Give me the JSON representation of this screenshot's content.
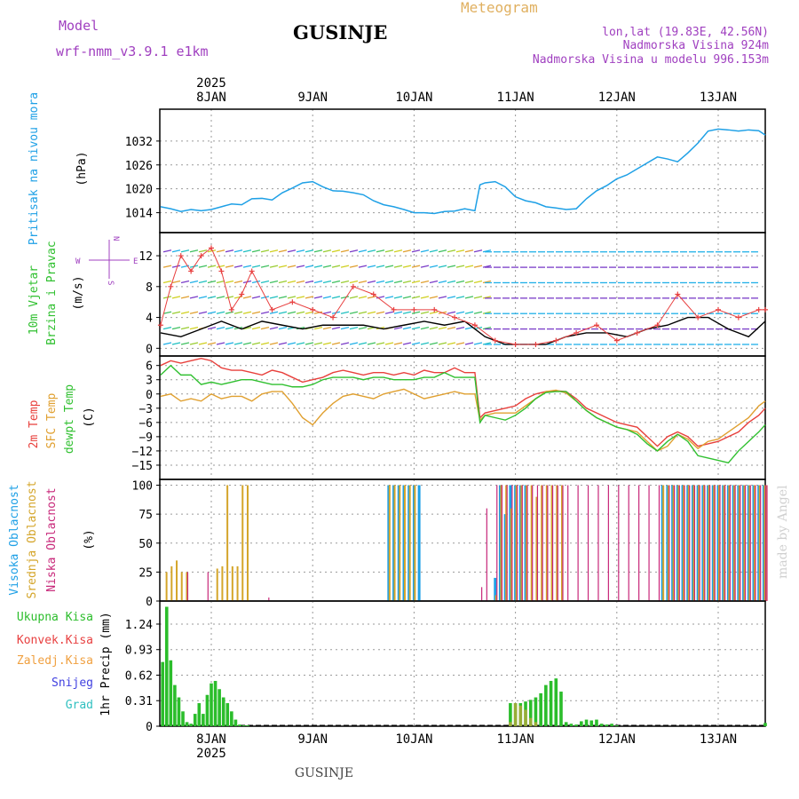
{
  "header": {
    "model_label": "Model",
    "model_name": "wrf-nmm_v3.9.1 e1km",
    "title": "GUSINJE",
    "subtitle": "Meteogram",
    "coords": "lon,lat (19.83E, 42.56N)",
    "elevation": "Nadmorska Visina 924m",
    "model_elevation": "Nadmorska Visina u modelu 996.153m",
    "watermark": "made by Angel",
    "footer_title": "GUSINJE"
  },
  "colors": {
    "pressure": "#1ea0e6",
    "temp2m": "#e8403c",
    "sfc": "#e0a030",
    "dew": "#30c030",
    "high_cloud": "#1ea0e6",
    "mid_cloud": "#d4a52a",
    "low_cloud": "#c8287a",
    "total_precip": "#2bbd2b",
    "conv": "#e84040",
    "frozen": "#f0a040",
    "snow": "#4040e0",
    "graup": "#30c0c0",
    "wind_speed": "#000000",
    "gust": "#e84040",
    "wind_ylabel": "#30c030",
    "compass": "#a040c0",
    "model": "#a040c0"
  },
  "time_axis": {
    "year": "2025",
    "days": [
      "8JAN",
      "9JAN",
      "10JAN",
      "11JAN",
      "12JAN",
      "13JAN"
    ]
  },
  "chart_data": [
    {
      "id": "pressure",
      "type": "line",
      "ylabels": [
        "Pritisak na nivou mora",
        "(hPa)"
      ],
      "yticks": [
        1014,
        1020,
        1026,
        1032
      ],
      "ylim": [
        1009,
        1040
      ],
      "x_unit": "days since 8JAN 00Z",
      "series": [
        {
          "name": "MSLP",
          "x": [
            -0.5,
            -0.4,
            -0.3,
            -0.2,
            -0.1,
            0,
            0.1,
            0.2,
            0.3,
            0.4,
            0.5,
            0.6,
            0.7,
            0.8,
            0.9,
            1.0,
            1.1,
            1.2,
            1.3,
            1.4,
            1.5,
            1.6,
            1.7,
            1.8,
            1.9,
            2.0,
            2.1,
            2.2,
            2.3,
            2.4,
            2.5,
            2.6,
            2.65,
            2.7,
            2.8,
            2.9,
            3.0,
            3.1,
            3.2,
            3.3,
            3.4,
            3.5,
            3.6,
            3.7,
            3.8,
            3.9,
            4.0,
            4.1,
            4.2,
            4.3,
            4.4,
            4.5,
            4.6,
            4.7,
            4.8,
            4.9,
            5.0,
            5.1,
            5.2,
            5.3,
            5.4,
            5.5
          ],
          "values": [
            1015.5,
            1015,
            1014.3,
            1014.8,
            1014.5,
            1014.8,
            1015.5,
            1016.2,
            1016,
            1017.5,
            1017.6,
            1017.2,
            1019,
            1020.2,
            1021.5,
            1021.8,
            1020.5,
            1019.5,
            1019.4,
            1019,
            1018.5,
            1017,
            1016,
            1015.5,
            1014.8,
            1014,
            1014,
            1013.8,
            1014.3,
            1014.4,
            1015,
            1014.5,
            1021,
            1021.5,
            1021.8,
            1020.5,
            1018,
            1017,
            1016.5,
            1015.5,
            1015.2,
            1014.8,
            1015,
            1017.5,
            1019.5,
            1020.8,
            1022.5,
            1023.5,
            1025,
            1026.5,
            1028,
            1027.5,
            1026.8,
            1029,
            1031.5,
            1034.5,
            1035,
            1034.8,
            1034.5,
            1034.8,
            1034.6,
            1033.5
          ]
        }
      ]
    },
    {
      "id": "wind",
      "type": "line",
      "ylabels": [
        "10m Vjetar",
        "Brzina i Pravac",
        "(m/s)"
      ],
      "compass": [
        "N",
        "W",
        "E",
        "S"
      ],
      "yticks": [
        0,
        4,
        8,
        12
      ],
      "ylim": [
        -1,
        15
      ],
      "series": [
        {
          "name": "speed",
          "x": [
            -0.5,
            -0.3,
            -0.1,
            0.1,
            0.3,
            0.5,
            0.7,
            0.9,
            1.1,
            1.3,
            1.5,
            1.7,
            1.9,
            2.1,
            2.3,
            2.5,
            2.7,
            2.9,
            3.1,
            3.3,
            3.5,
            3.7,
            3.9,
            4.1,
            4.3,
            4.5,
            4.7,
            4.9,
            5.1,
            5.3,
            5.5
          ],
          "values": [
            2,
            1.5,
            2.5,
            3.5,
            2.5,
            3.5,
            3,
            2.5,
            3,
            3,
            3,
            2.5,
            3,
            3.5,
            3,
            3.5,
            1.5,
            0.5,
            0.5,
            0.5,
            1.5,
            2,
            2,
            1.5,
            2.5,
            3,
            4,
            4,
            2.5,
            1.5,
            3.5
          ]
        },
        {
          "name": "gust",
          "x": [
            -0.5,
            -0.4,
            -0.3,
            -0.2,
            -0.1,
            0,
            0.1,
            0.2,
            0.3,
            0.4,
            0.6,
            0.8,
            1.0,
            1.2,
            1.4,
            1.6,
            1.8,
            2.0,
            2.2,
            2.4,
            2.6,
            2.8,
            3.0,
            3.2,
            3.4,
            3.6,
            3.8,
            4.0,
            4.2,
            4.4,
            4.6,
            4.8,
            5.0,
            5.2,
            5.4,
            5.5
          ],
          "values": [
            3,
            8,
            12,
            10,
            12,
            13,
            10,
            5,
            7,
            10,
            5,
            6,
            5,
            4,
            8,
            7,
            5,
            5,
            5,
            4,
            3,
            1,
            0.5,
            0.5,
            1,
            2,
            3,
            1,
            2,
            3,
            7,
            4,
            5,
            4,
            5,
            5
          ]
        }
      ]
    },
    {
      "id": "temperature",
      "type": "line",
      "ylabels": [
        "2m Temp",
        "SFC Temp",
        "dewpt Temp",
        "(C)"
      ],
      "yticks": [
        6,
        3,
        0,
        -3,
        -6,
        -9,
        -12,
        -15
      ],
      "ylim": [
        -18,
        8
      ],
      "x": [
        -0.5,
        -0.4,
        -0.3,
        -0.2,
        -0.1,
        0,
        0.1,
        0.2,
        0.3,
        0.4,
        0.5,
        0.6,
        0.7,
        0.8,
        0.9,
        1.0,
        1.1,
        1.2,
        1.3,
        1.4,
        1.5,
        1.6,
        1.7,
        1.8,
        1.9,
        2.0,
        2.1,
        2.2,
        2.3,
        2.4,
        2.5,
        2.6,
        2.65,
        2.7,
        2.8,
        2.9,
        3.0,
        3.1,
        3.2,
        3.3,
        3.4,
        3.5,
        3.6,
        3.7,
        3.8,
        3.9,
        4.0,
        4.1,
        4.2,
        4.3,
        4.4,
        4.5,
        4.6,
        4.7,
        4.8,
        4.9,
        5.0,
        5.1,
        5.2,
        5.3,
        5.4,
        5.5
      ],
      "series": [
        {
          "name": "2m Temp",
          "values": [
            6,
            7,
            6.5,
            7,
            7.5,
            7,
            5.5,
            5,
            5,
            4.5,
            4,
            5,
            4.5,
            3.5,
            2.5,
            3,
            3.5,
            4.5,
            5,
            4.5,
            4,
            4.5,
            4.5,
            4,
            4.5,
            4,
            5,
            4.5,
            4.5,
            5.5,
            4.5,
            4.5,
            -5,
            -4,
            -3.5,
            -3,
            -2.5,
            -1,
            0,
            0.5,
            0.7,
            0.5,
            -1,
            -3,
            -4,
            -5,
            -6,
            -6.5,
            -7,
            -9,
            -11,
            -9,
            -8,
            -9,
            -11,
            -10.5,
            -10,
            -9,
            -8,
            -6,
            -4.5,
            -3
          ]
        },
        {
          "name": "SFC Temp",
          "values": [
            -0.5,
            0,
            -1.5,
            -1,
            -1.5,
            0,
            -1,
            -0.5,
            -0.5,
            -1.5,
            0,
            0.5,
            0.5,
            -2,
            -5,
            -6.5,
            -4,
            -2,
            -0.5,
            0,
            -0.5,
            -1,
            0,
            0.5,
            1,
            0,
            -1,
            -0.5,
            0,
            0.5,
            0,
            0,
            -5.5,
            -4.5,
            -4,
            -4,
            -4,
            -2.5,
            -1,
            0.5,
            0.8,
            0.2,
            -1.5,
            -3.5,
            -5,
            -6,
            -7,
            -7.5,
            -8,
            -10,
            -12,
            -11,
            -8.5,
            -9.5,
            -11.5,
            -10,
            -9.5,
            -8,
            -6.5,
            -5,
            -2.5,
            -1.5
          ]
        },
        {
          "name": "dewpt Temp",
          "values": [
            4,
            6,
            4,
            4,
            2,
            2.5,
            2,
            2.5,
            3,
            3,
            2.5,
            2,
            2,
            1.5,
            1.5,
            2,
            3,
            3.5,
            3.5,
            3.5,
            3,
            3.5,
            3.5,
            3,
            3,
            3,
            3.5,
            3.5,
            4.5,
            3.5,
            3.5,
            3.5,
            -6,
            -4.5,
            -5,
            -5.5,
            -4.5,
            -3,
            -1,
            0.3,
            0.5,
            0.5,
            -1.5,
            -3.5,
            -5,
            -6,
            -7,
            -7.5,
            -8.5,
            -10.5,
            -12,
            -10,
            -8.5,
            -10,
            -13,
            -13.5,
            -14,
            -14.5,
            -12,
            -10,
            -8,
            -6.5
          ]
        }
      ]
    },
    {
      "id": "cloud",
      "type": "bar",
      "ylabels": [
        "Visoka Oblacnost",
        "Srednja Oblacnost",
        "Niska Oblacnost",
        "(%)"
      ],
      "yticks": [
        0,
        25,
        50,
        75,
        100
      ],
      "ylim": [
        0,
        105
      ],
      "series": [
        {
          "name": "Visoka Oblacnost",
          "bands": [
            [
              1.75,
              2.05,
              100
            ],
            [
              2.75,
              2.8,
              20
            ],
            [
              2.8,
              3.0,
              88
            ],
            [
              3.9,
              4.3,
              0
            ],
            [
              4.45,
              4.55,
              100
            ],
            [
              4.55,
              4.7,
              100
            ],
            [
              4.75,
              5.5,
              100
            ]
          ],
          "x": [
            1.75,
            1.8,
            1.85,
            1.9,
            1.95,
            2.0,
            2.05,
            2.8,
            2.85,
            2.9,
            2.95,
            3.0,
            3.05,
            3.1,
            4.45,
            4.5,
            4.55,
            4.6,
            4.65,
            4.7,
            4.75,
            4.8,
            4.85,
            4.9,
            4.95,
            5.0,
            5.05,
            5.1,
            5.15,
            5.2,
            5.25,
            5.3,
            5.35,
            5.4,
            5.45,
            5.5
          ],
          "values": [
            100,
            100,
            100,
            100,
            100,
            100,
            100,
            20,
            100,
            75,
            100,
            100,
            100,
            100,
            100,
            100,
            100,
            100,
            100,
            100,
            100,
            100,
            100,
            100,
            100,
            100,
            100,
            100,
            100,
            100,
            100,
            100,
            100,
            100,
            100,
            100
          ]
        },
        {
          "name": "Srednja Oblacnost",
          "x": [
            -0.45,
            -0.4,
            -0.35,
            -0.3,
            -0.25,
            0.05,
            0.1,
            0.15,
            0.2,
            0.25,
            0.3,
            0.35,
            1.75,
            1.8,
            1.85,
            1.9,
            1.95,
            2.0,
            2.8,
            2.85,
            2.9,
            2.95,
            3.0,
            3.05,
            3.1,
            3.15,
            3.2,
            3.25,
            3.3,
            3.35,
            3.4,
            3.45,
            4.45,
            4.5,
            4.55,
            4.6,
            4.65,
            4.7,
            4.75,
            4.8,
            4.85,
            4.9,
            4.95,
            5.0,
            5.05,
            5.1,
            5.15,
            5.2,
            5.25,
            5.3,
            5.35,
            5.4,
            5.45,
            5.5
          ],
          "values": [
            25,
            30,
            35,
            25,
            25,
            28,
            30,
            100,
            30,
            30,
            100,
            100,
            100,
            100,
            100,
            100,
            100,
            100,
            5,
            100,
            100,
            80,
            100,
            100,
            100,
            100,
            90,
            100,
            100,
            100,
            100,
            100,
            100,
            100,
            100,
            100,
            100,
            100,
            100,
            100,
            100,
            100,
            100,
            100,
            100,
            100,
            100,
            100,
            100,
            100,
            100,
            100,
            100,
            100
          ]
        },
        {
          "name": "Niska Oblacnost",
          "x": [
            -0.25,
            -0.05,
            0.55,
            2.65,
            2.7,
            2.8,
            2.85,
            2.9,
            2.95,
            3.0,
            3.05,
            3.1,
            3.15,
            3.2,
            3.25,
            3.3,
            3.35,
            3.4,
            3.45,
            3.5,
            3.6,
            3.7,
            3.8,
            3.9,
            4.0,
            4.1,
            4.2,
            4.3,
            4.4,
            4.5,
            4.55,
            4.6,
            4.65,
            4.7,
            4.75,
            4.8,
            4.85,
            4.9,
            4.95,
            5.0,
            5.05,
            5.1,
            5.15,
            5.2,
            5.25,
            5.3,
            5.35,
            5.4,
            5.45,
            5.5
          ],
          "values": [
            25,
            25,
            3,
            12,
            80,
            100,
            100,
            100,
            100,
            100,
            100,
            100,
            100,
            100,
            100,
            100,
            100,
            100,
            100,
            100,
            100,
            100,
            100,
            100,
            100,
            100,
            100,
            100,
            100,
            100,
            100,
            100,
            100,
            100,
            100,
            100,
            100,
            100,
            100,
            100,
            100,
            100,
            100,
            100,
            100,
            100,
            100,
            100,
            100,
            100
          ]
        }
      ]
    },
    {
      "id": "precip",
      "type": "bar",
      "ylabels": [
        "1hr Precip (mm)"
      ],
      "legend": [
        "Ukupna Kisa",
        "Konvek.Kisa",
        "Zaledj.Kisa",
        "Snijeg",
        "Grad"
      ],
      "yticks": [
        0,
        0.31,
        0.62,
        0.93,
        1.24
      ],
      "ylim": [
        0,
        1.52
      ],
      "series": [
        {
          "name": "Ukupna Kisa",
          "x": [
            -0.48,
            -0.44,
            -0.4,
            -0.36,
            -0.32,
            -0.28,
            -0.24,
            -0.2,
            -0.16,
            -0.12,
            -0.08,
            -0.04,
            0.0,
            0.04,
            0.08,
            0.12,
            0.16,
            0.2,
            0.24,
            0.28,
            0.32,
            0.36,
            2.95,
            3.0,
            3.05,
            3.1,
            3.15,
            3.2,
            3.25,
            3.3,
            3.35,
            3.4,
            3.45,
            3.5,
            3.55,
            3.6,
            3.65,
            3.7,
            3.75,
            3.8,
            3.85,
            3.9,
            3.95,
            4.0,
            5.5
          ],
          "values": [
            0.78,
            1.45,
            0.8,
            0.5,
            0.35,
            0.18,
            0.05,
            0.03,
            0.15,
            0.28,
            0.15,
            0.38,
            0.52,
            0.55,
            0.45,
            0.35,
            0.28,
            0.18,
            0.08,
            0.02,
            0.01,
            0.01,
            0.28,
            0.28,
            0.28,
            0.3,
            0.32,
            0.35,
            0.4,
            0.5,
            0.55,
            0.58,
            0.42,
            0.05,
            0.03,
            0.02,
            0.06,
            0.08,
            0.07,
            0.08,
            0.03,
            0.02,
            0.03,
            0.01,
            0.04
          ]
        },
        {
          "name": "Zaledj.Kisa",
          "x": [
            2.95,
            3.0,
            3.05,
            3.1,
            3.15,
            3.2
          ],
          "values": [
            0.05,
            0.28,
            0.25,
            0.2,
            0.1,
            0.05
          ]
        }
      ]
    }
  ]
}
